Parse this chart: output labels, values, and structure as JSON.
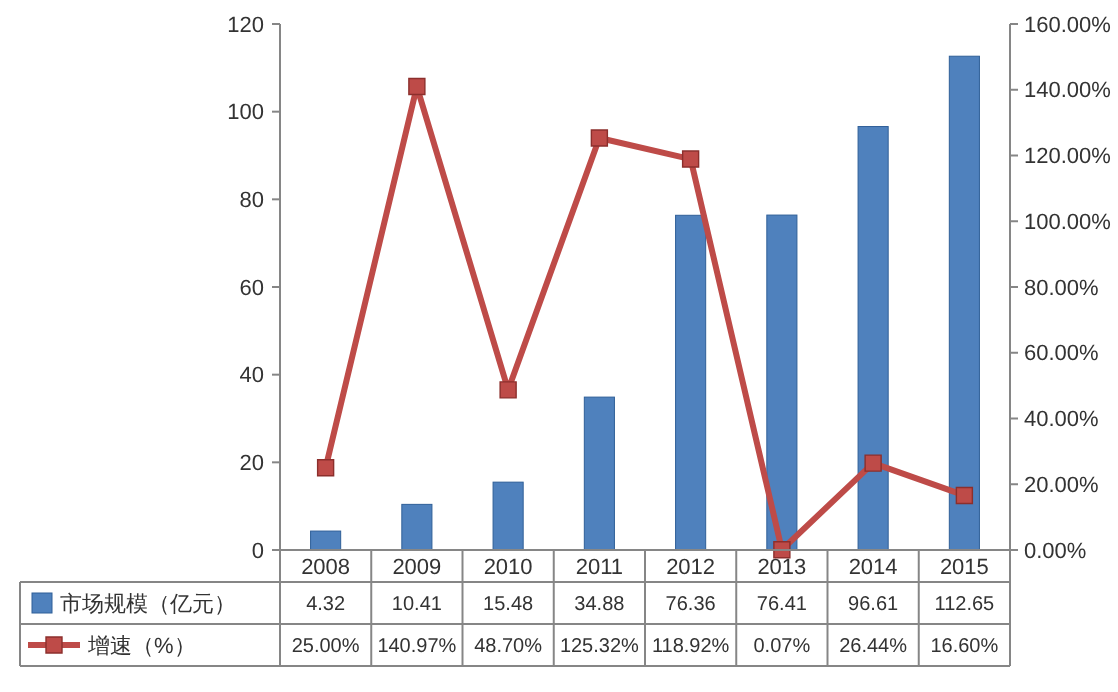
{
  "chart_data": {
    "type": "bar",
    "categories": [
      "2008",
      "2009",
      "2010",
      "2011",
      "2012",
      "2013",
      "2014",
      "2015"
    ],
    "series": [
      {
        "name": "市场规模（亿元）",
        "color": "#4f81bd",
        "values": [
          4.32,
          10.41,
          15.48,
          34.88,
          76.36,
          76.41,
          96.61,
          112.65
        ],
        "value_labels": [
          "4.32",
          "10.41",
          "15.48",
          "34.88",
          "76.36",
          "76.41",
          "96.61",
          "112.65"
        ]
      },
      {
        "name": "增速（%）",
        "type": "line",
        "axis": "y2",
        "color": "#be4b48",
        "marker": "square",
        "values": [
          25.0,
          140.97,
          48.7,
          125.32,
          118.92,
          0.07,
          26.44,
          16.6
        ],
        "value_labels": [
          "25.00%",
          "140.97%",
          "48.70%",
          "125.32%",
          "118.92%",
          "0.07%",
          "26.44%",
          "16.60%"
        ]
      }
    ],
    "ylim": [
      0,
      120
    ],
    "yticks": [
      0,
      20,
      40,
      60,
      80,
      100,
      120
    ],
    "y2lim": [
      0,
      160
    ],
    "y2ticks": [
      {
        "value": 0,
        "label": "0.00%"
      },
      {
        "value": 20,
        "label": "20.00%"
      },
      {
        "value": 40,
        "label": "40.00%"
      },
      {
        "value": 60,
        "label": "60.00%"
      },
      {
        "value": 80,
        "label": "80.00%"
      },
      {
        "value": 100,
        "label": "100.00%"
      },
      {
        "value": 120,
        "label": "120.00%"
      },
      {
        "value": 140,
        "label": "140.00%"
      },
      {
        "value": 160,
        "label": "160.00%"
      }
    ],
    "legend": "bottom",
    "grid": false
  }
}
